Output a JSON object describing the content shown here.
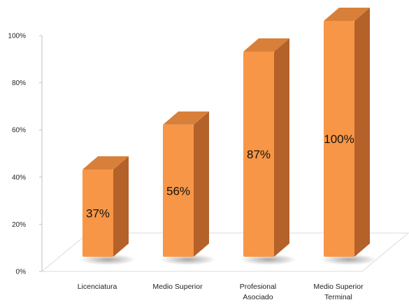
{
  "chart_data": {
    "type": "bar",
    "style": "3d-column",
    "categories": [
      [
        "Licenciatura"
      ],
      [
        "Medio Superior"
      ],
      [
        "Profesional",
        "Asociado"
      ],
      [
        "Medio Superior",
        "Terminal"
      ]
    ],
    "values": [
      37,
      56,
      87,
      100
    ],
    "data_labels": [
      "37%",
      "56%",
      "87%",
      "100%"
    ],
    "y_ticks": [
      "0%",
      "20%",
      "40%",
      "60%",
      "80%",
      "100%"
    ],
    "ylim": [
      0,
      100
    ],
    "grid": false,
    "legend": "none",
    "colors": {
      "front": "#F79646",
      "side": "#B4612A",
      "top": "#D8803A",
      "floor": "#E2E2E2",
      "axis": "#BFBFBF"
    }
  }
}
